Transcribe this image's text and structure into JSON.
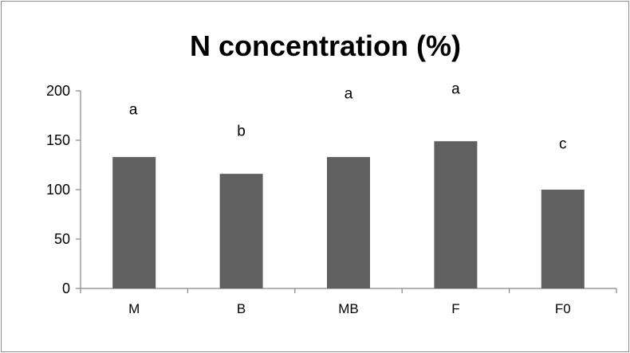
{
  "chart_data": {
    "type": "bar",
    "title": "N concentration (%)",
    "xlabel": "",
    "ylabel": "",
    "categories": [
      "M",
      "B",
      "MB",
      "F",
      "F0"
    ],
    "values": [
      133,
      116,
      133,
      149,
      100
    ],
    "annotations": [
      "a",
      "b",
      "a",
      "a",
      "c"
    ],
    "annotation_values": [
      182,
      160,
      198,
      203,
      147
    ],
    "ylim": [
      0,
      200
    ],
    "yticks": [
      "0",
      "50",
      "100",
      "150",
      "200"
    ],
    "ytick_values": [
      0,
      50,
      100,
      150,
      200
    ],
    "bar_color": "#606060",
    "grid": false,
    "legend": "none"
  }
}
